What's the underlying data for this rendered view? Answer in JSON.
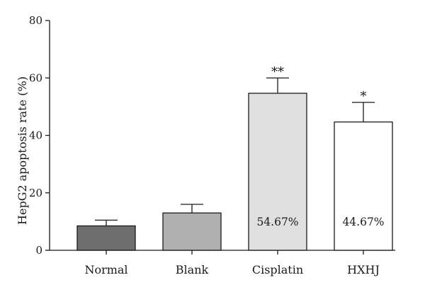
{
  "chart_data": {
    "type": "bar",
    "title": "",
    "xlabel": "",
    "ylabel": "HepG2 apoptosis rate (%)",
    "ylim": [
      0,
      80
    ],
    "yticks": [
      0,
      20,
      40,
      60,
      80
    ],
    "grid": false,
    "categories": [
      "Normal",
      "Blank",
      "Cisplatin",
      "HXHJ"
    ],
    "values": [
      8.5,
      13.0,
      54.67,
      44.67
    ],
    "error_upper": [
      10.5,
      16.0,
      60.0,
      51.5
    ],
    "colors": [
      "#6e6e6e",
      "#b0b0b0",
      "#e0e0e0",
      "#ffffff"
    ],
    "data_labels": [
      "",
      "",
      "54.67%",
      "44.67%"
    ],
    "significance": [
      "",
      "",
      "**",
      "*"
    ]
  }
}
